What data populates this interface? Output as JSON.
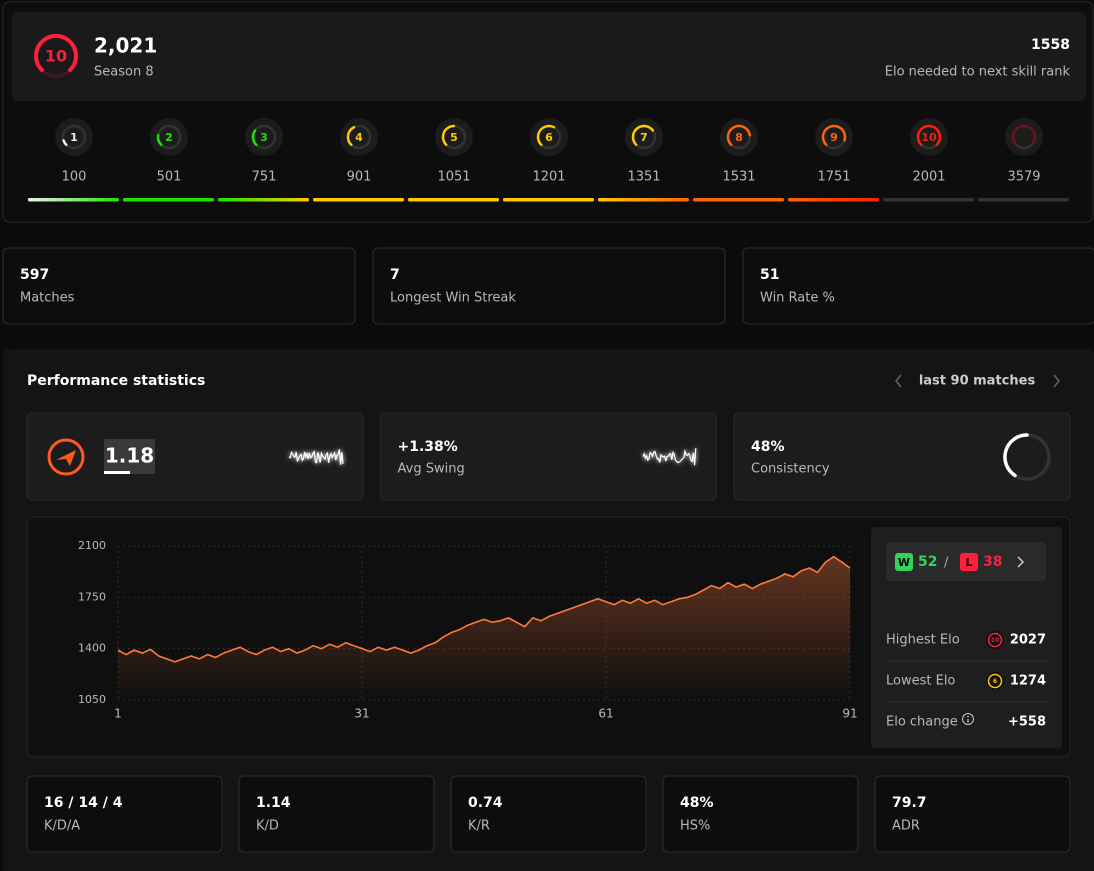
{
  "header": {
    "rank": "10",
    "elo": "2,021",
    "season": "Season 8",
    "elo_needed": "1558",
    "elo_needed_label": "Elo needed to next skill rank"
  },
  "levels": [
    {
      "level": "1",
      "min": "100",
      "color": "#eeeeee"
    },
    {
      "level": "2",
      "min": "501",
      "color": "#1ce400"
    },
    {
      "level": "3",
      "min": "751",
      "color": "#1ce400"
    },
    {
      "level": "4",
      "min": "901",
      "color": "#ffc800"
    },
    {
      "level": "5",
      "min": "1051",
      "color": "#ffc800"
    },
    {
      "level": "6",
      "min": "1201",
      "color": "#ffc800"
    },
    {
      "level": "7",
      "min": "1351",
      "color": "#ffc800"
    },
    {
      "level": "8",
      "min": "1531",
      "color": "#ff6309"
    },
    {
      "level": "9",
      "min": "1751",
      "color": "#ff6309"
    },
    {
      "level": "10",
      "min": "2001",
      "color": "#fe1f00"
    },
    {
      "min": "3579",
      "color": "#6a1420"
    }
  ],
  "stats": [
    {
      "value": "597",
      "label": "Matches"
    },
    {
      "value": "7",
      "label": "Longest Win Streak"
    },
    {
      "value": "51",
      "label": "Win Rate %"
    }
  ],
  "performance": {
    "title": "Performance statistics",
    "range": "last 90 matches",
    "cards": [
      {
        "value": "1.18"
      },
      {
        "value": "+1.38%",
        "label": "Avg Swing"
      },
      {
        "value": "48%",
        "label": "Consistency"
      }
    ],
    "record": {
      "win_badge": "W",
      "wins": "52",
      "sep": "/",
      "loss_badge": "L",
      "losses": "38"
    },
    "summary": [
      {
        "label": "Highest Elo",
        "badge": "10",
        "value": "2027"
      },
      {
        "label": "Lowest Elo",
        "badge": "6",
        "value": "1274"
      },
      {
        "label": "Elo change",
        "value": "+558"
      }
    ]
  },
  "chart_data": {
    "type": "line",
    "x": [
      1,
      2,
      3,
      4,
      5,
      6,
      7,
      8,
      9,
      10,
      11,
      12,
      13,
      14,
      15,
      16,
      17,
      18,
      19,
      20,
      21,
      22,
      23,
      24,
      25,
      26,
      27,
      28,
      29,
      30,
      31,
      32,
      33,
      34,
      35,
      36,
      37,
      38,
      39,
      40,
      41,
      42,
      43,
      44,
      45,
      46,
      47,
      48,
      49,
      50,
      51,
      52,
      53,
      54,
      55,
      56,
      57,
      58,
      59,
      60,
      61,
      62,
      63,
      64,
      65,
      66,
      67,
      68,
      69,
      70,
      71,
      72,
      73,
      74,
      75,
      76,
      77,
      78,
      79,
      80,
      81,
      82,
      83,
      84,
      85,
      86,
      87,
      88,
      89,
      90,
      91
    ],
    "series": [
      {
        "color": "#ff7a3a",
        "values": [
          1390,
          1360,
          1390,
          1370,
          1395,
          1350,
          1330,
          1310,
          1330,
          1350,
          1330,
          1360,
          1340,
          1370,
          1390,
          1410,
          1380,
          1360,
          1390,
          1410,
          1380,
          1400,
          1370,
          1390,
          1420,
          1400,
          1430,
          1410,
          1440,
          1420,
          1400,
          1380,
          1410,
          1390,
          1410,
          1390,
          1370,
          1390,
          1420,
          1440,
          1480,
          1510,
          1530,
          1560,
          1580,
          1600,
          1580,
          1590,
          1610,
          1580,
          1550,
          1610,
          1590,
          1620,
          1640,
          1660,
          1680,
          1700,
          1720,
          1740,
          1720,
          1700,
          1730,
          1710,
          1740,
          1710,
          1730,
          1700,
          1720,
          1740,
          1750,
          1770,
          1800,
          1830,
          1810,
          1850,
          1820,
          1840,
          1810,
          1840,
          1860,
          1880,
          1910,
          1890,
          1930,
          1950,
          1920,
          1990,
          2027,
          1990,
          1950
        ]
      }
    ],
    "xlim": [
      1,
      91
    ],
    "xticks": [
      1,
      31,
      61,
      91
    ],
    "ylim": [
      1050,
      2100
    ],
    "yticks": [
      1050,
      1400,
      1750,
      2100
    ],
    "grid": true
  },
  "match_stats": [
    {
      "value": "16 / 14 / 4",
      "label": "K/D/A"
    },
    {
      "value": "1.14",
      "label": "K/D"
    },
    {
      "value": "0.74",
      "label": "K/R"
    },
    {
      "value": "48%",
      "label": "HS%"
    },
    {
      "value": "79.7",
      "label": "ADR"
    }
  ]
}
